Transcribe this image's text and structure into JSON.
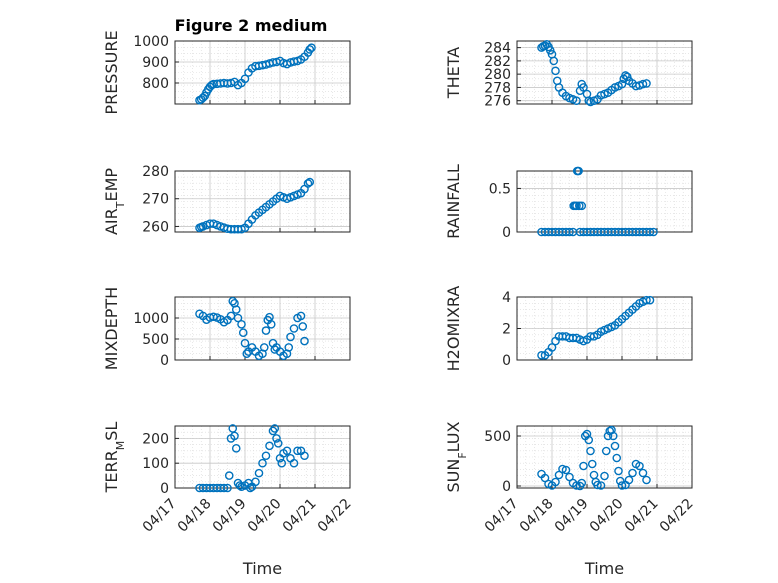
{
  "figure": {
    "title": "Figure 2 medium",
    "marker_color": "#0072BD",
    "grid": "major and minor (dotted)",
    "marker": "open circle"
  },
  "chart_data": [
    {
      "type": "scatter",
      "ylabel": "PRESSURE",
      "xlim": [
        "04/17",
        "04/22"
      ],
      "ylim": [
        700,
        1000
      ],
      "yticks": [
        "800",
        "900",
        "1000"
      ],
      "x_ticks": [
        "04/17",
        "04/18",
        "04/19",
        "04/20",
        "04/21",
        "04/22"
      ],
      "x_ticklabels_shown": false,
      "series_points": [
        [
          0.7,
          718
        ],
        [
          0.75,
          722
        ],
        [
          0.8,
          730
        ],
        [
          0.85,
          738
        ],
        [
          0.9,
          755
        ],
        [
          0.95,
          770
        ],
        [
          1.0,
          782
        ],
        [
          1.05,
          790
        ],
        [
          1.1,
          795
        ],
        [
          1.2,
          796
        ],
        [
          1.3,
          798
        ],
        [
          1.4,
          800
        ],
        [
          1.5,
          798
        ],
        [
          1.6,
          800
        ],
        [
          1.7,
          805
        ],
        [
          1.8,
          790
        ],
        [
          1.9,
          800
        ],
        [
          2.0,
          820
        ],
        [
          2.1,
          850
        ],
        [
          2.2,
          870
        ],
        [
          2.3,
          880
        ],
        [
          2.4,
          882
        ],
        [
          2.5,
          885
        ],
        [
          2.6,
          888
        ],
        [
          2.7,
          893
        ],
        [
          2.8,
          898
        ],
        [
          2.9,
          900
        ],
        [
          3.0,
          905
        ],
        [
          3.1,
          895
        ],
        [
          3.2,
          890
        ],
        [
          3.3,
          898
        ],
        [
          3.4,
          902
        ],
        [
          3.5,
          905
        ],
        [
          3.6,
          912
        ],
        [
          3.7,
          925
        ],
        [
          3.8,
          945
        ],
        [
          3.85,
          960
        ],
        [
          3.9,
          968
        ]
      ]
    },
    {
      "type": "scatter",
      "ylabel": "THETA",
      "xlim": [
        "04/17",
        "04/22"
      ],
      "ylim": [
        275.5,
        285
      ],
      "yticks": [
        "276",
        "278",
        "280",
        "282",
        "284"
      ],
      "x_ticklabels_shown": false,
      "series_points": [
        [
          0.7,
          284.0
        ],
        [
          0.75,
          284.2
        ],
        [
          0.8,
          284.3
        ],
        [
          0.85,
          284.5
        ],
        [
          0.9,
          284.1
        ],
        [
          0.95,
          283.6
        ],
        [
          1.0,
          283.0
        ],
        [
          1.05,
          282.0
        ],
        [
          1.1,
          280.5
        ],
        [
          1.15,
          279.0
        ],
        [
          1.2,
          278.0
        ],
        [
          1.3,
          277.2
        ],
        [
          1.4,
          276.7
        ],
        [
          1.5,
          276.4
        ],
        [
          1.6,
          276.2
        ],
        [
          1.7,
          276.0
        ],
        [
          1.8,
          277.5
        ],
        [
          1.85,
          278.5
        ],
        [
          1.9,
          278.0
        ],
        [
          2.0,
          277.0
        ],
        [
          2.05,
          276.0
        ],
        [
          2.1,
          275.8
        ],
        [
          2.2,
          276.0
        ],
        [
          2.3,
          276.2
        ],
        [
          2.4,
          276.8
        ],
        [
          2.5,
          277.0
        ],
        [
          2.6,
          277.2
        ],
        [
          2.7,
          277.6
        ],
        [
          2.8,
          278.0
        ],
        [
          2.9,
          278.2
        ],
        [
          3.0,
          278.5
        ],
        [
          3.05,
          279.3
        ],
        [
          3.1,
          279.8
        ],
        [
          3.15,
          279.6
        ],
        [
          3.2,
          279.0
        ],
        [
          3.3,
          278.6
        ],
        [
          3.4,
          278.2
        ],
        [
          3.5,
          278.3
        ],
        [
          3.6,
          278.5
        ],
        [
          3.7,
          278.6
        ]
      ]
    },
    {
      "type": "scatter",
      "ylabel": "AIR_TEMP",
      "xlim": [
        "04/17",
        "04/22"
      ],
      "ylim": [
        258,
        280
      ],
      "yticks": [
        "260",
        "270",
        "280"
      ],
      "x_ticklabels_shown": false,
      "series_points": [
        [
          0.7,
          259.5
        ],
        [
          0.75,
          259.8
        ],
        [
          0.8,
          260.0
        ],
        [
          0.9,
          260.5
        ],
        [
          1.0,
          261.0
        ],
        [
          1.1,
          261.0
        ],
        [
          1.2,
          260.5
        ],
        [
          1.3,
          260.0
        ],
        [
          1.4,
          259.6
        ],
        [
          1.5,
          259.2
        ],
        [
          1.6,
          259.0
        ],
        [
          1.7,
          259.0
        ],
        [
          1.8,
          259.0
        ],
        [
          1.9,
          259.0
        ],
        [
          2.0,
          259.5
        ],
        [
          2.1,
          261.0
        ],
        [
          2.2,
          262.5
        ],
        [
          2.3,
          264.0
        ],
        [
          2.4,
          265.0
        ],
        [
          2.5,
          266.0
        ],
        [
          2.6,
          267.0
        ],
        [
          2.7,
          268.0
        ],
        [
          2.8,
          269.0
        ],
        [
          2.9,
          270.0
        ],
        [
          3.0,
          271.0
        ],
        [
          3.1,
          270.5
        ],
        [
          3.2,
          270.0
        ],
        [
          3.3,
          270.5
        ],
        [
          3.4,
          271.0
        ],
        [
          3.5,
          271.5
        ],
        [
          3.6,
          272.0
        ],
        [
          3.7,
          273.5
        ],
        [
          3.8,
          275.5
        ],
        [
          3.85,
          276.0
        ]
      ]
    },
    {
      "type": "scatter",
      "ylabel": "RAINFALL",
      "xlim": [
        "04/17",
        "04/22"
      ],
      "ylim": [
        0,
        0.7
      ],
      "yticks": [
        "0",
        "0.5"
      ],
      "x_ticklabels_shown": false,
      "series_points": [
        [
          0.7,
          0
        ],
        [
          0.8,
          0
        ],
        [
          0.9,
          0
        ],
        [
          1.0,
          0
        ],
        [
          1.1,
          0
        ],
        [
          1.2,
          0
        ],
        [
          1.3,
          0
        ],
        [
          1.4,
          0
        ],
        [
          1.5,
          0
        ],
        [
          1.6,
          0
        ],
        [
          1.62,
          0.3
        ],
        [
          1.66,
          0.3
        ],
        [
          1.7,
          0.3
        ],
        [
          1.72,
          0.7
        ],
        [
          1.74,
          0.7
        ],
        [
          1.76,
          0.7
        ],
        [
          1.78,
          0.3
        ],
        [
          1.8,
          0
        ],
        [
          1.85,
          0.3
        ],
        [
          1.9,
          0
        ],
        [
          2.0,
          0
        ],
        [
          2.1,
          0
        ],
        [
          2.2,
          0
        ],
        [
          2.3,
          0
        ],
        [
          2.4,
          0
        ],
        [
          2.5,
          0
        ],
        [
          2.6,
          0
        ],
        [
          2.7,
          0
        ],
        [
          2.8,
          0
        ],
        [
          2.9,
          0
        ],
        [
          3.0,
          0
        ],
        [
          3.1,
          0
        ],
        [
          3.2,
          0
        ],
        [
          3.3,
          0
        ],
        [
          3.4,
          0
        ],
        [
          3.5,
          0
        ],
        [
          3.6,
          0
        ],
        [
          3.7,
          0
        ],
        [
          3.8,
          0
        ],
        [
          3.9,
          0
        ]
      ]
    },
    {
      "type": "scatter",
      "ylabel": "MIXDEPTH",
      "xlim": [
        "04/17",
        "04/22"
      ],
      "ylim": [
        0,
        1500
      ],
      "yticks": [
        "0",
        "500",
        "1000"
      ],
      "x_ticklabels_shown": false,
      "series_points": [
        [
          0.7,
          1100
        ],
        [
          0.8,
          1050
        ],
        [
          0.9,
          960
        ],
        [
          1.0,
          1010
        ],
        [
          1.1,
          1030
        ],
        [
          1.2,
          1010
        ],
        [
          1.3,
          970
        ],
        [
          1.4,
          900
        ],
        [
          1.5,
          950
        ],
        [
          1.6,
          1050
        ],
        [
          1.65,
          1400
        ],
        [
          1.7,
          1350
        ],
        [
          1.75,
          1200
        ],
        [
          1.8,
          1000
        ],
        [
          1.9,
          850
        ],
        [
          1.95,
          650
        ],
        [
          2.0,
          400
        ],
        [
          2.05,
          150
        ],
        [
          2.1,
          200
        ],
        [
          2.2,
          300
        ],
        [
          2.3,
          200
        ],
        [
          2.4,
          100
        ],
        [
          2.5,
          150
        ],
        [
          2.55,
          300
        ],
        [
          2.6,
          700
        ],
        [
          2.65,
          950
        ],
        [
          2.7,
          1020
        ],
        [
          2.75,
          850
        ],
        [
          2.8,
          400
        ],
        [
          2.85,
          250
        ],
        [
          2.9,
          300
        ],
        [
          3.0,
          200
        ],
        [
          3.1,
          100
        ],
        [
          3.2,
          150
        ],
        [
          3.25,
          300
        ],
        [
          3.3,
          550
        ],
        [
          3.4,
          750
        ],
        [
          3.5,
          1000
        ],
        [
          3.6,
          1050
        ],
        [
          3.65,
          800
        ],
        [
          3.7,
          450
        ]
      ]
    },
    {
      "type": "scatter",
      "ylabel": "H2OMIXRA",
      "xlim": [
        "04/17",
        "04/22"
      ],
      "ylim": [
        0,
        4
      ],
      "yticks": [
        "0",
        "2",
        "4"
      ],
      "x_ticklabels_shown": false,
      "series_points": [
        [
          0.7,
          0.3
        ],
        [
          0.8,
          0.3
        ],
        [
          0.9,
          0.5
        ],
        [
          1.0,
          0.8
        ],
        [
          1.1,
          1.2
        ],
        [
          1.2,
          1.5
        ],
        [
          1.3,
          1.5
        ],
        [
          1.4,
          1.5
        ],
        [
          1.5,
          1.4
        ],
        [
          1.6,
          1.4
        ],
        [
          1.7,
          1.4
        ],
        [
          1.8,
          1.3
        ],
        [
          1.9,
          1.2
        ],
        [
          2.0,
          1.3
        ],
        [
          2.1,
          1.5
        ],
        [
          2.2,
          1.5
        ],
        [
          2.3,
          1.6
        ],
        [
          2.4,
          1.8
        ],
        [
          2.5,
          1.9
        ],
        [
          2.6,
          2.0
        ],
        [
          2.7,
          2.1
        ],
        [
          2.8,
          2.2
        ],
        [
          2.9,
          2.4
        ],
        [
          3.0,
          2.6
        ],
        [
          3.1,
          2.8
        ],
        [
          3.2,
          3.0
        ],
        [
          3.3,
          3.2
        ],
        [
          3.4,
          3.4
        ],
        [
          3.5,
          3.6
        ],
        [
          3.6,
          3.7
        ],
        [
          3.7,
          3.8
        ],
        [
          3.8,
          3.8
        ]
      ]
    },
    {
      "type": "scatter",
      "ylabel": "TERR_MSL",
      "xlim": [
        "04/17",
        "04/22"
      ],
      "ylim": [
        0,
        250
      ],
      "yticks": [
        "0",
        "100",
        "200"
      ],
      "x_ticks": [
        "04/17",
        "04/18",
        "04/19",
        "04/20",
        "04/21",
        "04/22"
      ],
      "xlabel": "Time",
      "series_points": [
        [
          0.7,
          0
        ],
        [
          0.8,
          0
        ],
        [
          0.9,
          0
        ],
        [
          1.0,
          0
        ],
        [
          1.1,
          0
        ],
        [
          1.2,
          0
        ],
        [
          1.3,
          0
        ],
        [
          1.4,
          0
        ],
        [
          1.5,
          0
        ],
        [
          1.55,
          50
        ],
        [
          1.6,
          200
        ],
        [
          1.65,
          240
        ],
        [
          1.7,
          210
        ],
        [
          1.75,
          160
        ],
        [
          1.8,
          20
        ],
        [
          1.85,
          10
        ],
        [
          1.9,
          5
        ],
        [
          2.0,
          10
        ],
        [
          2.1,
          20
        ],
        [
          2.15,
          0
        ],
        [
          2.2,
          5
        ],
        [
          2.3,
          25
        ],
        [
          2.4,
          60
        ],
        [
          2.5,
          100
        ],
        [
          2.6,
          130
        ],
        [
          2.7,
          170
        ],
        [
          2.8,
          230
        ],
        [
          2.85,
          240
        ],
        [
          2.9,
          200
        ],
        [
          2.95,
          180
        ],
        [
          3.0,
          120
        ],
        [
          3.05,
          100
        ],
        [
          3.1,
          140
        ],
        [
          3.2,
          150
        ],
        [
          3.3,
          120
        ],
        [
          3.4,
          100
        ],
        [
          3.5,
          150
        ],
        [
          3.6,
          150
        ],
        [
          3.7,
          130
        ]
      ]
    },
    {
      "type": "scatter",
      "ylabel": "SUN_FLUX",
      "xlim": [
        "04/17",
        "04/22"
      ],
      "ylim": [
        -20,
        600
      ],
      "yticks": [
        "0",
        "500"
      ],
      "x_ticks": [
        "04/17",
        "04/18",
        "04/19",
        "04/20",
        "04/21",
        "04/22"
      ],
      "xlabel": "Time",
      "series_points": [
        [
          0.7,
          120
        ],
        [
          0.8,
          80
        ],
        [
          0.9,
          20
        ],
        [
          1.0,
          5
        ],
        [
          1.1,
          40
        ],
        [
          1.2,
          110
        ],
        [
          1.3,
          170
        ],
        [
          1.4,
          160
        ],
        [
          1.5,
          90
        ],
        [
          1.6,
          30
        ],
        [
          1.7,
          5
        ],
        [
          1.8,
          0
        ],
        [
          1.85,
          30
        ],
        [
          1.9,
          200
        ],
        [
          1.95,
          500
        ],
        [
          2.0,
          520
        ],
        [
          2.05,
          460
        ],
        [
          2.1,
          350
        ],
        [
          2.15,
          220
        ],
        [
          2.2,
          110
        ],
        [
          2.25,
          40
        ],
        [
          2.3,
          10
        ],
        [
          2.4,
          5
        ],
        [
          2.5,
          100
        ],
        [
          2.55,
          350
        ],
        [
          2.6,
          500
        ],
        [
          2.65,
          550
        ],
        [
          2.7,
          560
        ],
        [
          2.75,
          500
        ],
        [
          2.8,
          400
        ],
        [
          2.85,
          280
        ],
        [
          2.9,
          150
        ],
        [
          2.95,
          50
        ],
        [
          3.0,
          5
        ],
        [
          3.1,
          10
        ],
        [
          3.2,
          60
        ],
        [
          3.3,
          130
        ],
        [
          3.4,
          220
        ],
        [
          3.5,
          200
        ],
        [
          3.6,
          130
        ],
        [
          3.7,
          60
        ]
      ]
    }
  ]
}
